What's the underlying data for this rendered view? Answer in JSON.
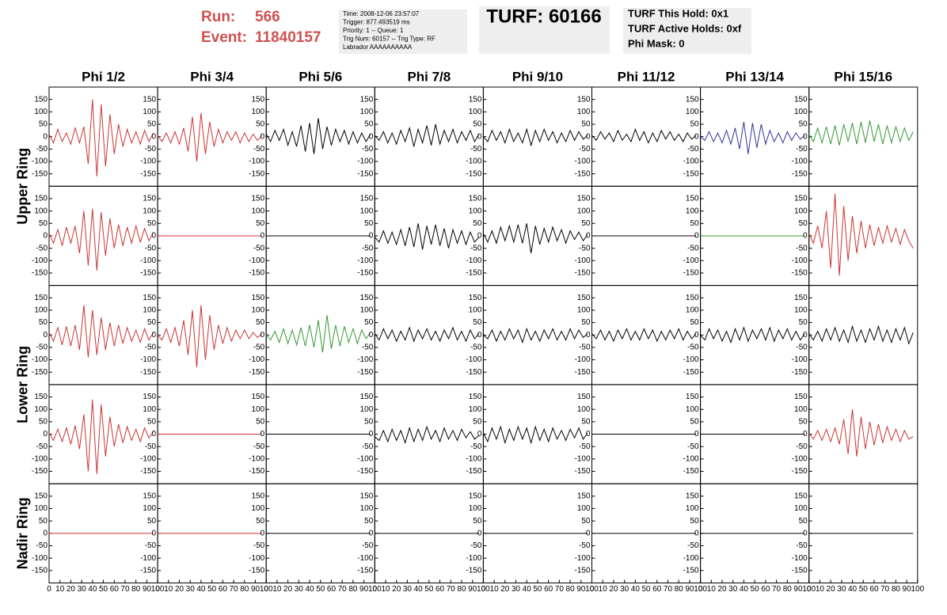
{
  "header": {
    "run_label": "Run:",
    "run": "566",
    "event_label": "Event:",
    "event": "11840157",
    "info": [
      "Time: 2008-12-06 23:57:07",
      "Trigger: 877.493519 ms",
      "Priority: 1 -- Queue: 1",
      "Trig Num: 60157 -- Trig Type: RF",
      "Labrador AAAAAAAAAA"
    ],
    "turf": "TURF: 60166",
    "turf_info": [
      "TURF This Hold: 0x1",
      "TURF Active Holds: 0xf",
      "Phi Mask: 0"
    ]
  },
  "columns": [
    "Phi 1/2",
    "Phi 3/4",
    "Phi 5/6",
    "Phi 7/8",
    "Phi 9/10",
    "Phi 11/12",
    "Phi 13/14",
    "Phi 15/16"
  ],
  "ring_labels": [
    "Upper Ring",
    "Lower Ring",
    "Nadir Ring"
  ],
  "xlim": [
    0,
    100
  ],
  "ylim": [
    -200,
    200
  ],
  "xticks": [
    0,
    10,
    20,
    30,
    40,
    50,
    60,
    70,
    80,
    90,
    100
  ],
  "yticks": [
    150,
    100,
    50,
    0,
    -50,
    -100,
    -150
  ],
  "x": [
    0,
    4,
    8,
    12,
    16,
    20,
    24,
    28,
    32,
    36,
    40,
    44,
    48,
    52,
    56,
    60,
    64,
    68,
    72,
    76,
    80,
    84,
    88,
    92,
    96
  ],
  "rows": [
    [
      {
        "color": "#cc3333",
        "values": [
          10,
          -25,
          30,
          -20,
          15,
          -30,
          35,
          -25,
          40,
          -110,
          150,
          -160,
          130,
          -120,
          90,
          -70,
          50,
          -40,
          30,
          -25,
          20,
          -30,
          25,
          -20,
          15
        ]
      },
      {
        "color": "#cc3333",
        "values": [
          5,
          -20,
          15,
          -25,
          20,
          -30,
          35,
          -60,
          80,
          -100,
          95,
          -70,
          60,
          -40,
          30,
          -25,
          20,
          -15,
          20,
          -25,
          15,
          -20,
          10,
          -15,
          5
        ]
      },
      {
        "color": "#000000",
        "values": [
          10,
          -20,
          25,
          -15,
          30,
          -35,
          20,
          -40,
          45,
          -60,
          55,
          -70,
          75,
          -50,
          40,
          -35,
          30,
          -20,
          25,
          -30,
          20,
          -25,
          15,
          -20,
          10
        ]
      },
      {
        "color": "#000000",
        "values": [
          5,
          -15,
          20,
          -25,
          15,
          -30,
          25,
          -20,
          35,
          -40,
          30,
          -25,
          45,
          -35,
          50,
          -30,
          25,
          -20,
          30,
          -25,
          20,
          -15,
          25,
          -20,
          10
        ]
      },
      {
        "color": "#000000",
        "values": [
          0,
          -20,
          25,
          -15,
          20,
          -25,
          30,
          -20,
          15,
          -25,
          30,
          -35,
          25,
          -20,
          30,
          -15,
          20,
          -25,
          15,
          -20,
          25,
          -15,
          20,
          -10,
          5
        ]
      },
      {
        "color": "#000000",
        "values": [
          5,
          -15,
          20,
          -10,
          15,
          -20,
          25,
          -15,
          10,
          -20,
          30,
          -15,
          20,
          -25,
          15,
          -20,
          25,
          -10,
          20,
          -15,
          10,
          -20,
          15,
          -10,
          5
        ]
      },
      {
        "color": "#333399",
        "values": [
          0,
          -15,
          20,
          -20,
          15,
          -25,
          25,
          -30,
          35,
          -50,
          60,
          -70,
          55,
          -45,
          50,
          -30,
          25,
          -20,
          15,
          -25,
          20,
          -15,
          15,
          -10,
          5
        ]
      },
      {
        "color": "#339933",
        "values": [
          10,
          -20,
          35,
          -25,
          40,
          -30,
          45,
          -35,
          50,
          -20,
          55,
          -30,
          60,
          -25,
          65,
          -20,
          50,
          -30,
          45,
          -25,
          40,
          -20,
          35,
          -15,
          20
        ]
      }
    ],
    [
      {
        "color": "#cc3333",
        "values": [
          10,
          -30,
          25,
          -40,
          35,
          -30,
          40,
          -70,
          100,
          -120,
          110,
          -140,
          95,
          -80,
          70,
          -50,
          45,
          -40,
          35,
          -30,
          40,
          -25,
          30,
          -20,
          15
        ]
      },
      {
        "color": "#cc3333",
        "values": [
          0,
          0,
          0,
          0,
          0,
          0,
          0,
          0,
          0,
          0,
          0,
          0,
          0,
          0,
          0,
          0,
          0,
          0,
          0,
          0,
          0,
          0,
          0,
          0,
          0
        ]
      },
      {
        "color": "#000000",
        "values": [
          0,
          0,
          0,
          0,
          0,
          0,
          0,
          0,
          0,
          0,
          0,
          0,
          0,
          0,
          0,
          0,
          0,
          0,
          0,
          0,
          0,
          0,
          0,
          0,
          0
        ]
      },
      {
        "color": "#000000",
        "values": [
          -5,
          -25,
          20,
          -30,
          15,
          -35,
          25,
          -40,
          35,
          -45,
          50,
          -55,
          40,
          -35,
          45,
          -40,
          30,
          -50,
          25,
          -30,
          20,
          -35,
          15,
          -25,
          -5
        ]
      },
      {
        "color": "#000000",
        "values": [
          10,
          -25,
          20,
          -30,
          35,
          -20,
          40,
          -25,
          45,
          -30,
          50,
          -70,
          40,
          -35,
          30,
          -25,
          35,
          -20,
          25,
          -30,
          20,
          -15,
          15,
          -20,
          5
        ]
      },
      {
        "color": "#000000",
        "values": [
          0,
          0,
          0,
          0,
          0,
          0,
          0,
          0,
          0,
          0,
          0,
          0,
          0,
          0,
          0,
          0,
          0,
          0,
          0,
          0,
          0,
          0,
          0,
          0,
          0
        ]
      },
      {
        "color": "#339933",
        "values": [
          0,
          0,
          0,
          0,
          0,
          0,
          0,
          0,
          0,
          0,
          0,
          0,
          0,
          0,
          0,
          0,
          0,
          0,
          0,
          0,
          0,
          0,
          0,
          0,
          0
        ]
      },
      {
        "color": "#cc3333",
        "values": [
          10,
          -30,
          40,
          -50,
          100,
          -130,
          170,
          -160,
          120,
          -100,
          80,
          -70,
          60,
          -50,
          45,
          -40,
          35,
          -30,
          40,
          -25,
          30,
          -35,
          25,
          -20,
          -50
        ]
      }
    ],
    [
      {
        "color": "#cc3333",
        "values": [
          10,
          -25,
          30,
          -40,
          35,
          -45,
          40,
          -60,
          120,
          -90,
          100,
          -80,
          70,
          -60,
          50,
          -45,
          40,
          -35,
          30,
          -25,
          20,
          -30,
          25,
          -20,
          10
        ]
      },
      {
        "color": "#cc3333",
        "values": [
          0,
          -20,
          25,
          -30,
          30,
          -45,
          60,
          -80,
          100,
          -130,
          120,
          -100,
          80,
          -60,
          40,
          -35,
          30,
          -25,
          20,
          -15,
          20,
          -15,
          10,
          -10,
          5
        ]
      },
      {
        "color": "#339933",
        "values": [
          0,
          -20,
          15,
          -30,
          25,
          -35,
          20,
          -40,
          30,
          -45,
          40,
          -50,
          60,
          -70,
          80,
          -55,
          40,
          -45,
          35,
          -30,
          25,
          -35,
          20,
          -15,
          10
        ]
      },
      {
        "color": "#000000",
        "values": [
          5,
          -20,
          25,
          -15,
          20,
          -25,
          15,
          -20,
          30,
          -25,
          20,
          -15,
          25,
          -20,
          15,
          -25,
          20,
          -15,
          30,
          -20,
          15,
          -25,
          20,
          -15,
          5
        ]
      },
      {
        "color": "#000000",
        "values": [
          0,
          -15,
          20,
          -25,
          15,
          -20,
          25,
          -15,
          20,
          -30,
          25,
          -20,
          15,
          -25,
          20,
          -15,
          25,
          -20,
          15,
          -20,
          25,
          -15,
          20,
          -10,
          5
        ]
      },
      {
        "color": "#000000",
        "values": [
          5,
          -15,
          20,
          -20,
          15,
          -25,
          20,
          -15,
          25,
          -20,
          15,
          -20,
          25,
          -15,
          20,
          -25,
          15,
          -20,
          20,
          -15,
          25,
          -20,
          15,
          -15,
          5
        ]
      },
      {
        "color": "#000000",
        "values": [
          0,
          -20,
          25,
          -15,
          20,
          -25,
          15,
          -30,
          25,
          -20,
          30,
          -25,
          20,
          -15,
          25,
          -20,
          30,
          -25,
          20,
          -15,
          25,
          -20,
          15,
          -20,
          5
        ]
      },
      {
        "color": "#000000",
        "values": [
          5,
          -20,
          15,
          -25,
          25,
          -20,
          30,
          -25,
          20,
          -30,
          35,
          -25,
          20,
          -30,
          25,
          -20,
          35,
          -25,
          20,
          -30,
          25,
          -20,
          30,
          -35,
          10
        ]
      }
    ],
    [
      {
        "color": "#cc3333",
        "values": [
          5,
          -25,
          20,
          -30,
          25,
          -40,
          35,
          -60,
          80,
          -150,
          140,
          -160,
          120,
          -90,
          70,
          -50,
          40,
          -35,
          30,
          -25,
          20,
          -30,
          25,
          -15,
          10
        ]
      },
      {
        "color": "#cc3333",
        "values": [
          0,
          0,
          0,
          0,
          0,
          0,
          0,
          0,
          0,
          0,
          0,
          0,
          0,
          0,
          0,
          0,
          0,
          0,
          0,
          0,
          0,
          0,
          0,
          0,
          0
        ]
      },
      {
        "color": "#000000",
        "values": [
          0,
          0,
          0,
          0,
          0,
          0,
          0,
          0,
          0,
          0,
          0,
          0,
          0,
          0,
          0,
          0,
          0,
          0,
          0,
          0,
          0,
          0,
          0,
          0,
          0
        ]
      },
      {
        "color": "#000000",
        "values": [
          -10,
          -25,
          15,
          -30,
          20,
          -25,
          15,
          -35,
          25,
          -30,
          20,
          -25,
          30,
          -20,
          15,
          -30,
          25,
          -20,
          15,
          -25,
          20,
          -15,
          10,
          -20,
          -5
        ]
      },
      {
        "color": "#000000",
        "values": [
          5,
          -30,
          25,
          -20,
          30,
          -35,
          20,
          -25,
          30,
          -20,
          25,
          -35,
          30,
          -25,
          20,
          -30,
          25,
          -20,
          15,
          -25,
          20,
          -15,
          25,
          -20,
          5
        ]
      },
      {
        "color": "#000000",
        "values": [
          0,
          0,
          0,
          0,
          0,
          0,
          0,
          0,
          0,
          0,
          0,
          0,
          0,
          0,
          0,
          0,
          0,
          0,
          0,
          0,
          0,
          0,
          0,
          0,
          0
        ]
      },
      {
        "color": "#000000",
        "values": [
          0,
          0,
          0,
          0,
          0,
          0,
          0,
          0,
          0,
          0,
          0,
          0,
          0,
          0,
          0,
          0,
          0,
          0,
          0,
          0,
          0,
          0,
          0,
          0,
          0
        ]
      },
      {
        "color": "#cc3333",
        "values": [
          5,
          -20,
          15,
          -25,
          20,
          -30,
          25,
          -40,
          60,
          -80,
          100,
          -90,
          70,
          -60,
          50,
          -45,
          40,
          -35,
          30,
          -25,
          20,
          -30,
          15,
          -20,
          -10
        ]
      }
    ],
    [
      {
        "color": "#cc3333",
        "values": [
          0,
          0,
          0,
          0,
          0,
          0,
          0,
          0,
          0,
          0,
          0,
          0,
          0,
          0,
          0,
          0,
          0,
          0,
          0,
          0,
          0,
          0,
          0,
          0,
          0
        ]
      },
      {
        "color": "#cc3333",
        "values": [
          0,
          0,
          0,
          0,
          0,
          0,
          0,
          0,
          0,
          0,
          0,
          0,
          0,
          0,
          0,
          0,
          0,
          0,
          0,
          0,
          0,
          0,
          0,
          0,
          0
        ]
      },
      {
        "color": "#000000",
        "values": [
          0,
          0,
          0,
          0,
          0,
          0,
          0,
          0,
          0,
          0,
          0,
          0,
          0,
          0,
          0,
          0,
          0,
          0,
          0,
          0,
          0,
          0,
          0,
          0,
          0
        ]
      },
      {
        "color": "#000000",
        "values": [
          0,
          0,
          0,
          0,
          0,
          0,
          0,
          0,
          0,
          0,
          0,
          0,
          0,
          0,
          0,
          0,
          0,
          0,
          0,
          0,
          0,
          0,
          0,
          0,
          0
        ]
      },
      {
        "color": "#000000",
        "values": [
          0,
          0,
          0,
          0,
          0,
          0,
          0,
          0,
          0,
          0,
          0,
          0,
          0,
          0,
          0,
          0,
          0,
          0,
          0,
          0,
          0,
          0,
          0,
          0,
          0
        ]
      },
      {
        "color": "#000000",
        "values": [
          0,
          0,
          0,
          0,
          0,
          0,
          0,
          0,
          0,
          0,
          0,
          0,
          0,
          0,
          0,
          0,
          0,
          0,
          0,
          0,
          0,
          0,
          0,
          0,
          0
        ]
      },
      {
        "color": "#000000",
        "values": [
          0,
          0,
          0,
          0,
          0,
          0,
          0,
          0,
          0,
          0,
          0,
          0,
          0,
          0,
          0,
          0,
          0,
          0,
          0,
          0,
          0,
          0,
          0,
          0,
          0
        ]
      },
      {
        "color": "#000000",
        "values": [
          0,
          0,
          0,
          0,
          0,
          0,
          0,
          0,
          0,
          0,
          0,
          0,
          0,
          0,
          0,
          0,
          0,
          0,
          0,
          0,
          0,
          0,
          0,
          0,
          0
        ]
      }
    ]
  ]
}
